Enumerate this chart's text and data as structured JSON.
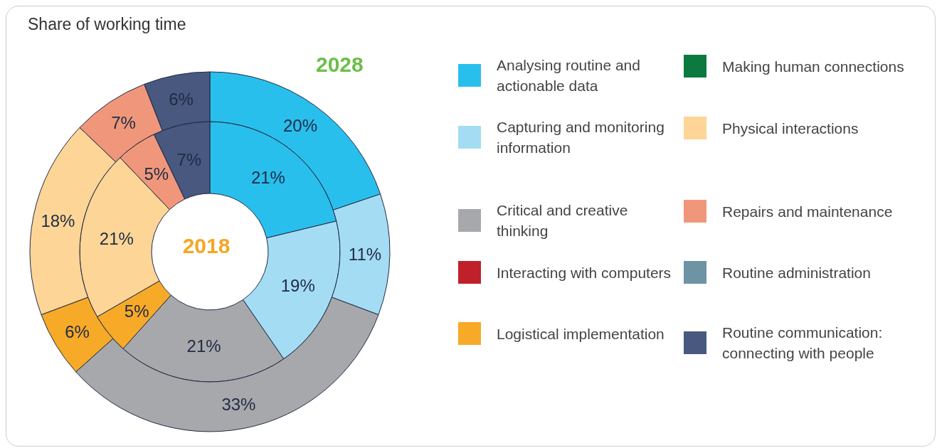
{
  "chart_data": {
    "type": "donut",
    "title": "Share of working time",
    "categories": [
      "Analysing routine and actionable data",
      "Capturing and monitoring information",
      "Critical and creative thinking",
      "Interacting with computers",
      "Logistical implementation",
      "Making human connections",
      "Physical interactions",
      "Repairs and maintenance",
      "Routine administration",
      "Routine communication: connecting with people"
    ],
    "colors": [
      "#29bfed",
      "#a4dcf4",
      "#a7a8ab",
      "#c0202a",
      "#f7a928",
      "#0c7a3e",
      "#fdd596",
      "#f0977b",
      "#6e93a5",
      "#48587f"
    ],
    "series": [
      {
        "name": "2018",
        "values": [
          21,
          19,
          21,
          null,
          5,
          null,
          21,
          5,
          null,
          7
        ],
        "value_labels": [
          "21%",
          "19%",
          "21%",
          null,
          "5%",
          null,
          "21%",
          "5%",
          null,
          "7%"
        ]
      },
      {
        "name": "2028",
        "values": [
          20,
          11,
          33,
          null,
          6,
          null,
          18,
          7,
          null,
          6
        ],
        "value_labels": [
          "20%",
          "11%",
          "33%",
          null,
          "6%",
          null,
          "18%",
          "7%",
          null,
          "6%"
        ]
      }
    ],
    "legend": "right"
  }
}
